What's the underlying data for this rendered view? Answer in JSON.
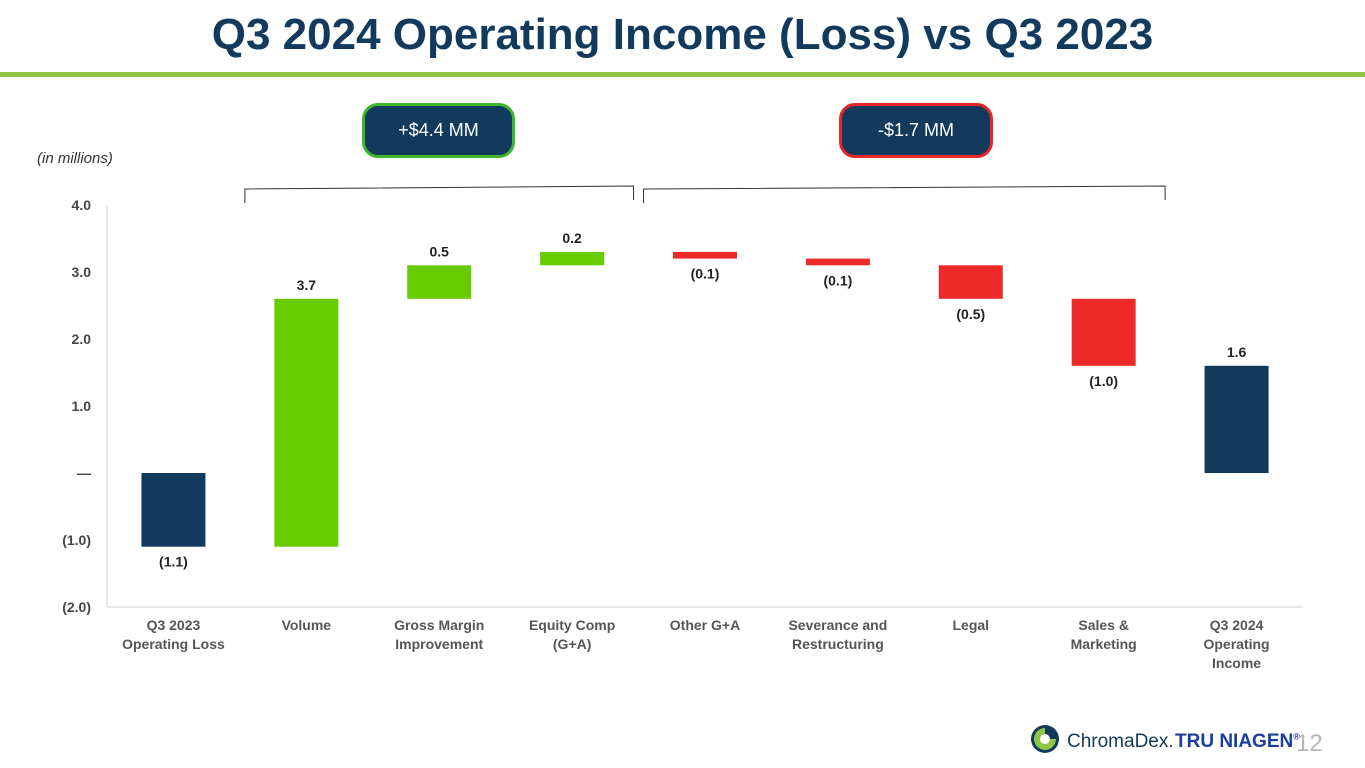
{
  "title": "Q3 2024 Operating Income (Loss) vs Q3 2023",
  "units_note": "(in millions)",
  "callouts": {
    "positive": "+$4.4 MM",
    "negative": "-$1.7 MM"
  },
  "colors": {
    "total": "#123a5c",
    "increase": "#66cc00",
    "decrease": "#ee2a28",
    "title": "#123a5c",
    "accent_rule": "#8fc644"
  },
  "chart_data": {
    "type": "bar",
    "subtype": "waterfall",
    "categories": [
      "Q3 2023\nOperating Loss",
      "Volume",
      "Gross Margin\nImprovement",
      "Equity Comp\n(G+A)",
      "Other G+A",
      "Severance and\nRestructuring",
      "Legal",
      "Sales &\nMarketing",
      "Q3 2024\nOperating\nIncome"
    ],
    "values": [
      -1.1,
      3.7,
      0.5,
      0.2,
      -0.1,
      -0.1,
      -0.5,
      -1.0,
      1.6
    ],
    "kinds": [
      "total",
      "increase",
      "increase",
      "increase",
      "decrease",
      "decrease",
      "decrease",
      "decrease",
      "total"
    ],
    "data_labels": [
      "(1.1)",
      "3.7",
      "0.5",
      "0.2",
      "(0.1)",
      "(0.1)",
      "(0.5)",
      "(1.0)",
      "1.6"
    ],
    "ylim": [
      -2.0,
      4.0
    ],
    "yticks": [
      4.0,
      3.0,
      2.0,
      1.0,
      0,
      -1.0,
      -2.0
    ],
    "ytick_labels": [
      "4.0",
      "3.0",
      "2.0",
      "1.0",
      "—",
      "(1.0)",
      "(2.0)"
    ],
    "grid": false,
    "brackets": [
      {
        "from": 1,
        "to": 3,
        "callout": "positive"
      },
      {
        "from": 4,
        "to": 7,
        "callout": "negative"
      }
    ]
  },
  "footer": {
    "brand": "ChromaDex.",
    "product": "TRU NIAGEN",
    "product_mark": "®",
    "page_number": "12"
  }
}
